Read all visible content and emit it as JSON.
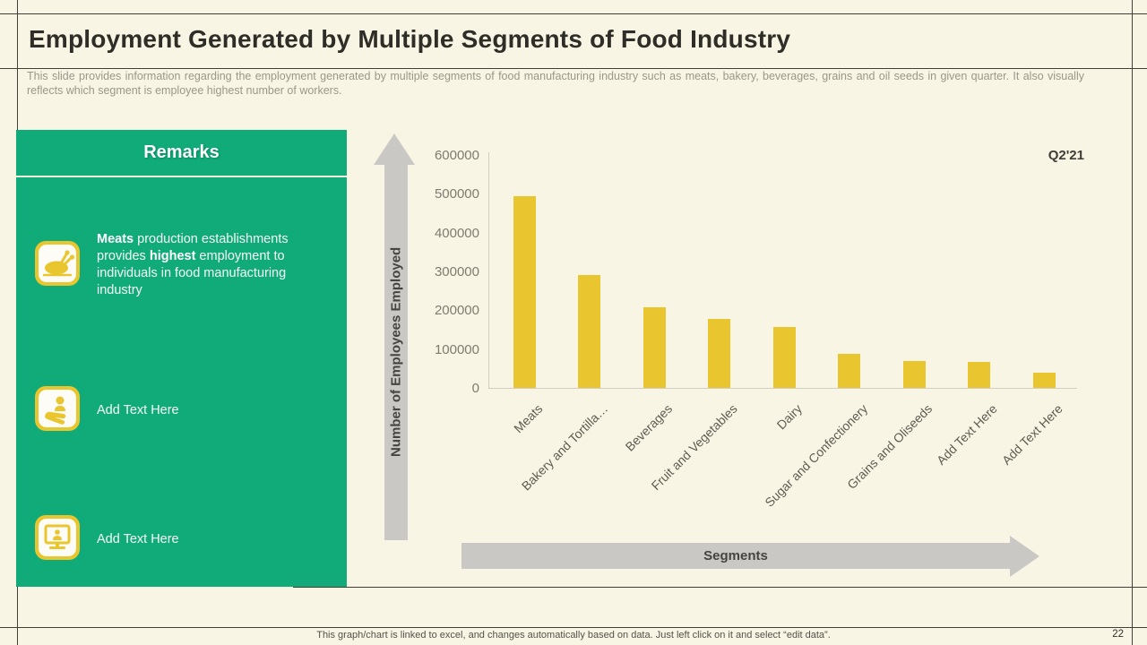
{
  "header": {
    "title": "Employment Generated by Multiple Segments of Food Industry",
    "subtitle": "This slide provides information regarding the employment generated by multiple segments of food manufacturing industry such as meats, bakery, beverages,  grains and oil seeds in given  quarter. It also visually reflects which segment is employee highest number of workers."
  },
  "remarks_panel": {
    "title": "Remarks",
    "items": [
      {
        "icon": "roast-meat-icon",
        "segments": [
          {
            "text": "Meats",
            "bold": true
          },
          {
            "text": " production establishments provides ",
            "bold": false
          },
          {
            "text": "highest",
            "bold": true
          },
          {
            "text": " employment to individuals in food manufacturing industry",
            "bold": false
          }
        ]
      },
      {
        "icon": "hand-giving-person-icon",
        "segments": [
          {
            "text": "Add Text Here",
            "bold": false
          }
        ]
      },
      {
        "icon": "monitor-person-icon",
        "segments": [
          {
            "text": "Add Text Here",
            "bold": false
          }
        ]
      }
    ]
  },
  "chart_data": {
    "type": "bar",
    "legend": "Q2'21",
    "categories": [
      "Meats",
      "Bakery and Tortilla…",
      "Beverages",
      "Fruit and Vegetables",
      "Dairy",
      "Sugar and Confectionery",
      "Grains and Oliseeds",
      "Add Text Here",
      "Add Text Here"
    ],
    "values": [
      495000,
      290000,
      207000,
      178000,
      158000,
      88000,
      70000,
      68000,
      40000
    ],
    "ylabel": "Number of Employees Employed",
    "xlabel": "Segments",
    "ylim": [
      0,
      600000
    ],
    "yticks": [
      0,
      100000,
      200000,
      300000,
      400000,
      500000,
      600000
    ],
    "grid": false,
    "legend_position": "top-right",
    "bar_color": "#e9c62f"
  },
  "footer": {
    "note": "This graph/chart is linked to excel,  and changes automatically based on data. Just left click on it and select “edit data”.",
    "page_number": "22"
  },
  "colors": {
    "background": "#f9f5e4",
    "panel_green": "#10ab79",
    "bar_yellow": "#e9c62f",
    "arrow_gray": "#c9c8c4",
    "title_text": "#2e2d27",
    "subtitle_text": "#9b978a"
  }
}
